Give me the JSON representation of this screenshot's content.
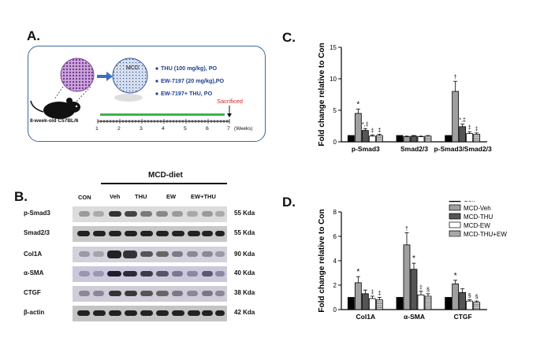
{
  "panel_a": {
    "letter": "A.",
    "mcd_label": "MCD",
    "treatments": [
      "THU (100 mg/kg), PO",
      "EW-7197 (20 mg/kg),PO",
      "EW-7197+ THU, PO"
    ],
    "mouse_label": "8-week-old  C57BL/6",
    "sacrificed": "Sacrificed",
    "timeline_ticks": [
      "1",
      "2",
      "3",
      "4",
      "5",
      "6",
      "7"
    ],
    "weeks": "(Weeks)"
  },
  "panel_b": {
    "letter": "B.",
    "group_label": "MCD-diet",
    "columns": [
      "CON",
      "Veh",
      "THU",
      "EW",
      "EW+THU"
    ],
    "rows": [
      {
        "protein": "p-Smad3",
        "kda": "55 Kda"
      },
      {
        "protein": "Smad2/3",
        "kda": "55 Kda"
      },
      {
        "protein": "Col1A",
        "kda": "90 Kda"
      },
      {
        "protein": "α-SMA",
        "kda": "40 Kda"
      },
      {
        "protein": "CTGF",
        "kda": "38 Kda"
      },
      {
        "protein": "β-actin",
        "kda": "42 Kda"
      }
    ]
  },
  "chart_data": [
    {
      "panel": "C.",
      "type": "bar",
      "ylabel": "Fold change relative to Con",
      "ylim": [
        0,
        15
      ],
      "yticks": [
        0,
        5,
        10,
        15
      ],
      "categories": [
        "p-Smad3",
        "Smad2/3",
        "p-Smad3/Smad2/3"
      ],
      "series": [
        {
          "values": [
            1.0,
            1.0,
            1.0
          ],
          "err": [
            0,
            0,
            0
          ],
          "color": "#000000"
        },
        {
          "values": [
            4.5,
            0.8,
            8.0
          ],
          "err": [
            0.7,
            0.1,
            1.6
          ],
          "color": "#a0a0a0"
        },
        {
          "values": [
            1.8,
            0.9,
            2.4
          ],
          "err": [
            0.3,
            0.1,
            0.4
          ],
          "color": "#555555"
        },
        {
          "values": [
            0.9,
            0.8,
            1.3
          ],
          "err": [
            0.2,
            0.1,
            0.3
          ],
          "color": "#ffffff"
        },
        {
          "values": [
            1.0,
            0.9,
            1.2
          ],
          "err": [
            0.2,
            0.1,
            0.2
          ],
          "color": "#cccccc"
        }
      ],
      "annotations": [
        [
          "",
          "*",
          "*,‡",
          "‡",
          "‡"
        ],
        [
          "",
          "",
          "",
          "",
          ""
        ],
        [
          "",
          "†",
          "*,‡",
          "‡",
          "‡"
        ]
      ]
    },
    {
      "panel": "D.",
      "type": "bar",
      "ylabel": "Fold change relative to Con",
      "ylim": [
        0,
        8
      ],
      "yticks": [
        0,
        2,
        4,
        6,
        8
      ],
      "categories": [
        "Col1A",
        "α-SMA",
        "CTGF"
      ],
      "legend": [
        "Con",
        "MCD-Veh",
        "MCD-THU",
        "MCD-EW",
        "MCD-THU+EW"
      ],
      "legend_position": "top-right",
      "series": [
        {
          "name": "Con",
          "values": [
            1.0,
            1.0,
            1.0
          ],
          "err": [
            0,
            0,
            0
          ],
          "color": "#000000"
        },
        {
          "name": "MCD-Veh",
          "values": [
            2.2,
            5.3,
            2.1
          ],
          "err": [
            0.5,
            1.0,
            0.3
          ],
          "color": "#a0a0a0"
        },
        {
          "name": "MCD-THU",
          "values": [
            1.3,
            3.3,
            1.4
          ],
          "err": [
            0.3,
            0.5,
            0.3
          ],
          "color": "#555555"
        },
        {
          "name": "MCD-EW",
          "values": [
            0.9,
            1.2,
            0.7
          ],
          "err": [
            0.2,
            0.3,
            0.1
          ],
          "color": "#ffffff"
        },
        {
          "name": "MCD-THU+EW",
          "values": [
            0.8,
            1.1,
            0.6
          ],
          "err": [
            0.2,
            0.2,
            0.1
          ],
          "color": "#cccccc"
        }
      ],
      "annotations": [
        [
          "",
          "*",
          "",
          "‡",
          "‡"
        ],
        [
          "",
          "†",
          "*",
          "‡",
          "§"
        ],
        [
          "",
          "*",
          "",
          "§",
          "§"
        ]
      ]
    }
  ]
}
